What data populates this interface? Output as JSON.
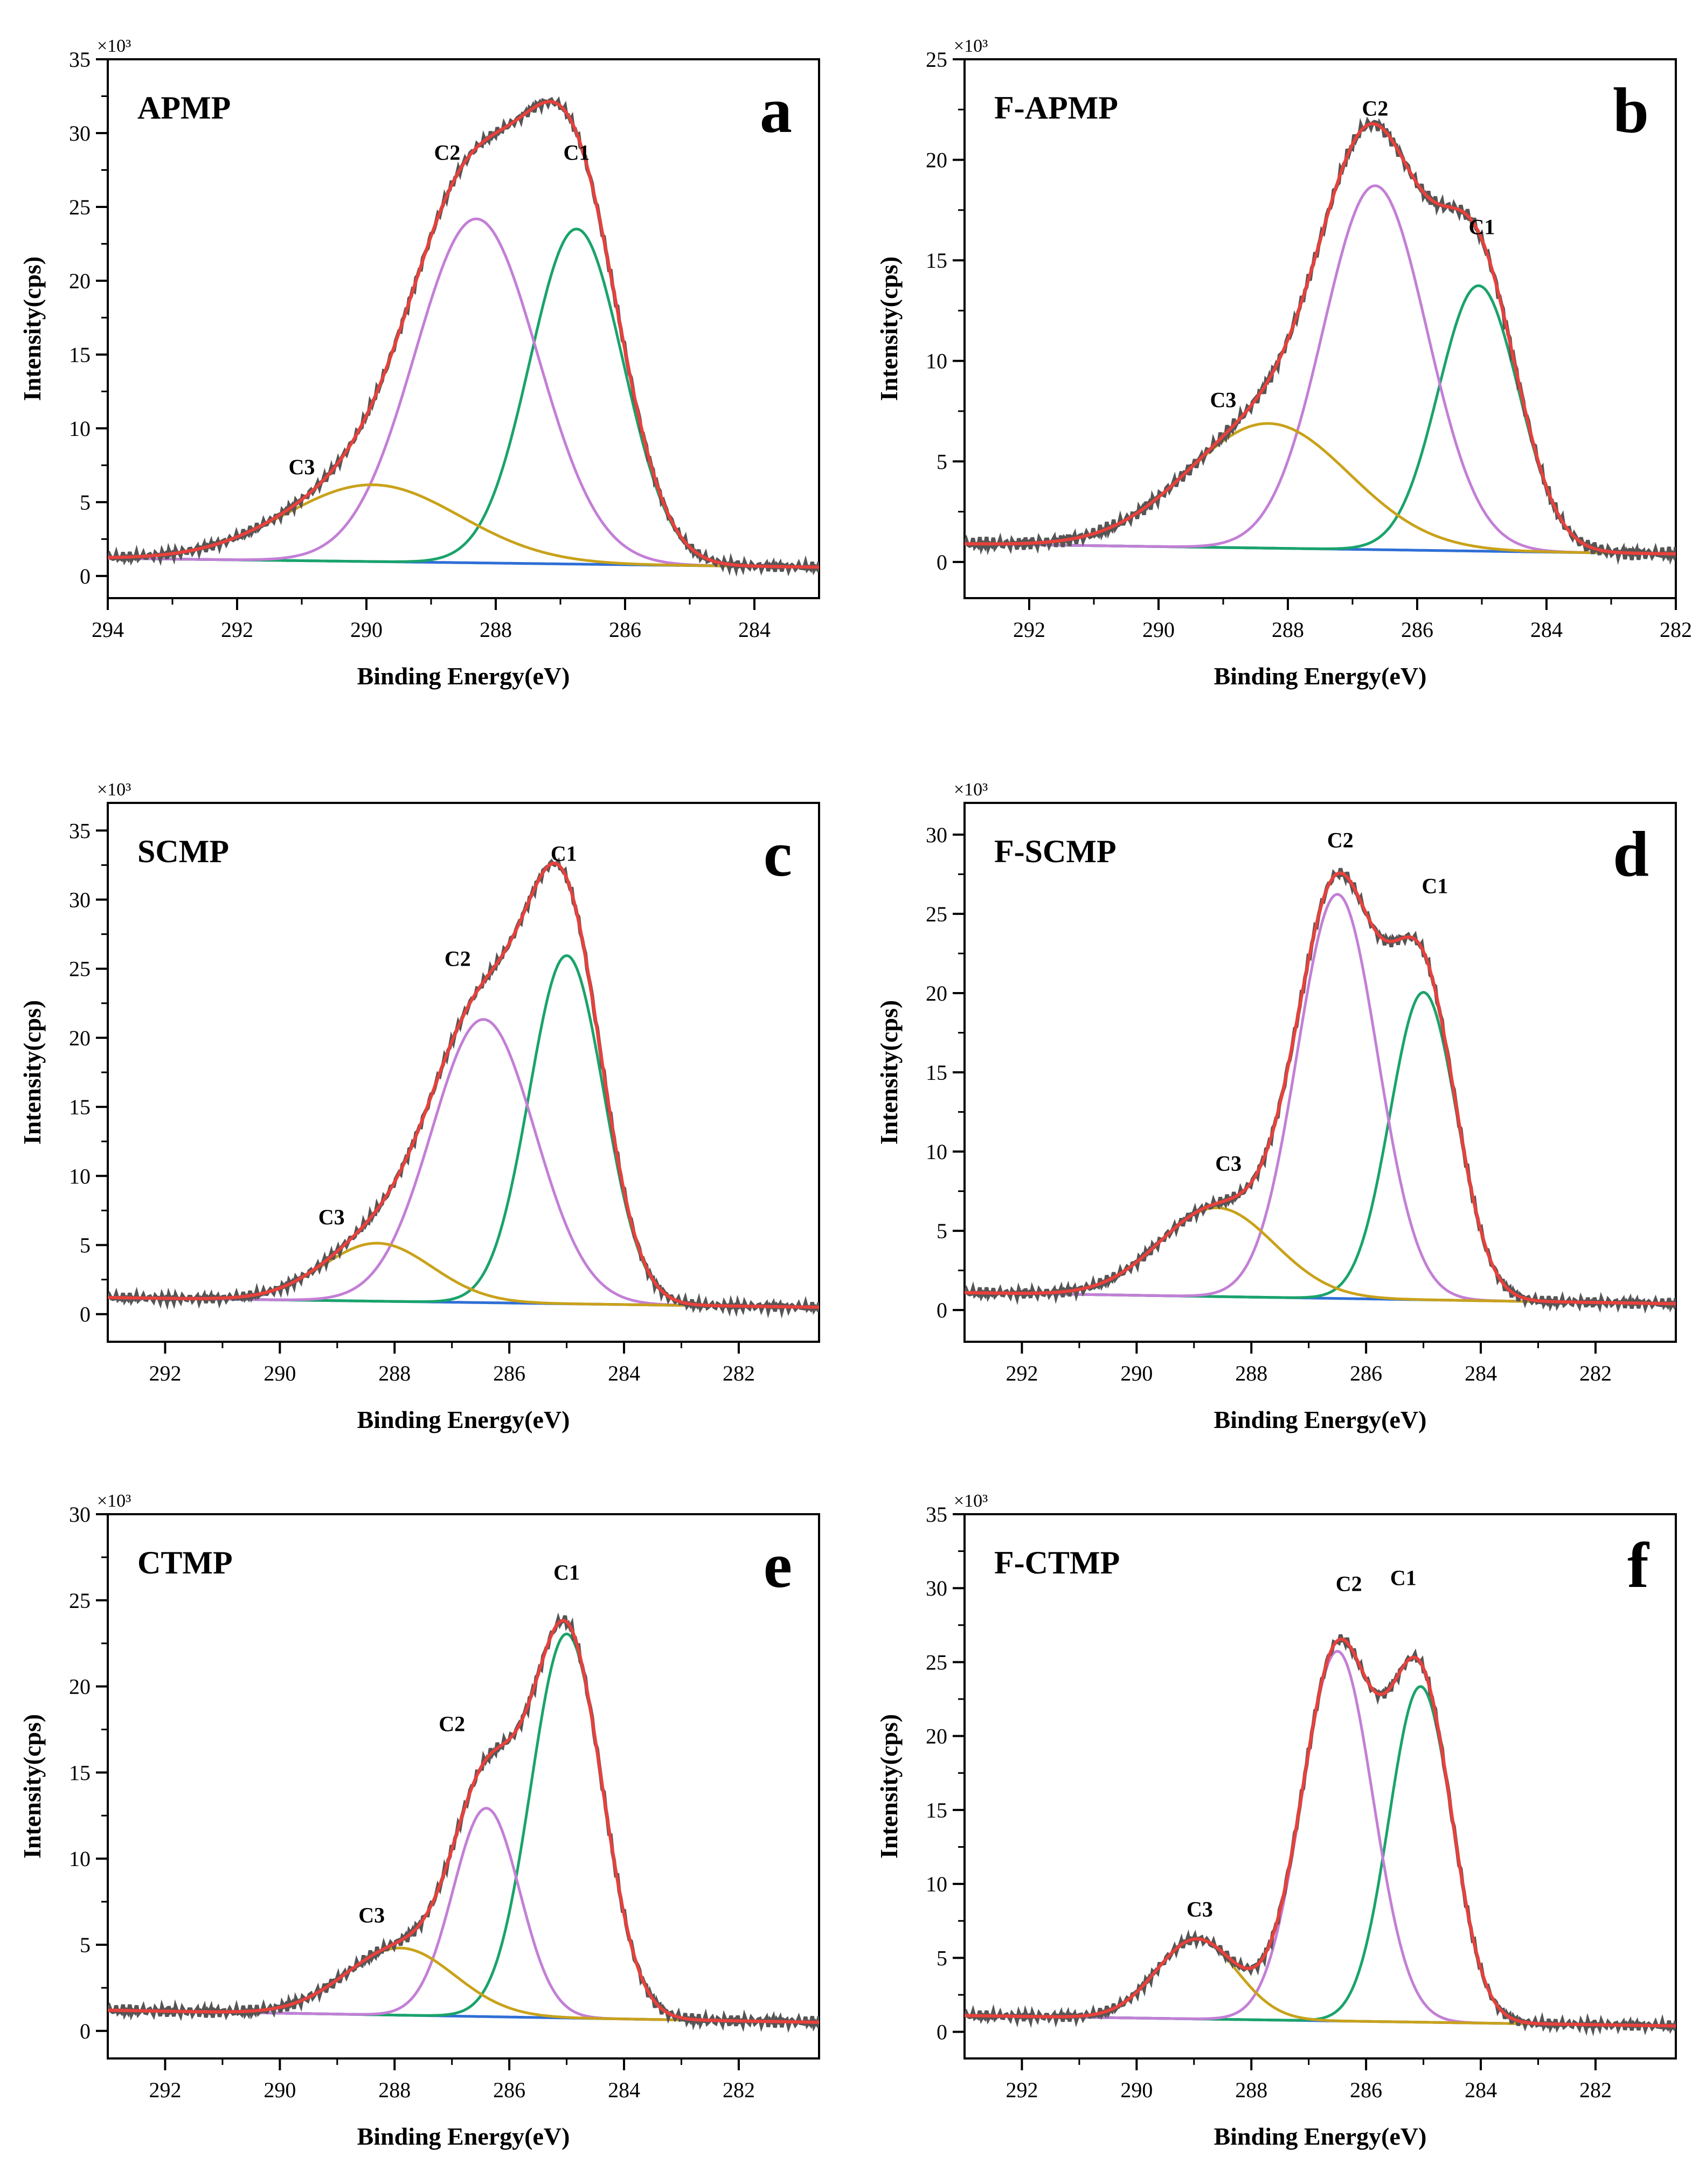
{
  "figure": {
    "x_label": "Binding Energy(eV)",
    "y_label": "Intensity(cps)",
    "y_multiplier": "×10³"
  },
  "colors": {
    "raw": "#555555",
    "envelope": "#e8413c",
    "C1": "#1aa36b",
    "C2": "#c37fd6",
    "C3": "#c9a21a",
    "baseline": "#2f6fd6",
    "axis": "#000000"
  },
  "chart_data": [
    {
      "type": "line",
      "title": "APMP",
      "panel_letter": "a",
      "xlim": [
        294,
        283
      ],
      "ylim": [
        -1.5,
        35
      ],
      "x_ticks": [
        294,
        292,
        290,
        288,
        286,
        284
      ],
      "y_ticks": [
        0,
        5,
        10,
        15,
        20,
        25,
        30,
        35
      ],
      "xlabel": "Binding Energy(eV)",
      "ylabel": "Intensity(cps)",
      "y_multiplier": "×10³",
      "baseline": {
        "start": 1.2,
        "end": 0.6
      },
      "series": [
        {
          "name": "C1",
          "center": 286.75,
          "amplitude": 22.7,
          "sigma": 0.72
        },
        {
          "name": "C2",
          "center": 288.3,
          "amplitude": 23.3,
          "sigma": 0.95
        },
        {
          "name": "C3",
          "center": 289.9,
          "amplitude": 5.2,
          "sigma": 1.35
        }
      ],
      "annotations": [
        {
          "text": "C1",
          "x": 286.75,
          "y": 28.2
        },
        {
          "text": "C2",
          "x": 288.75,
          "y": 28.2
        },
        {
          "text": "C3",
          "x": 291.0,
          "y": 6.9
        }
      ]
    },
    {
      "type": "line",
      "title": "F-APMP",
      "panel_letter": "b",
      "xlim": [
        293,
        282
      ],
      "ylim": [
        -1.8,
        25
      ],
      "x_ticks": [
        292,
        290,
        288,
        286,
        284,
        282
      ],
      "y_ticks": [
        0,
        5,
        10,
        15,
        20,
        25
      ],
      "xlabel": "Binding Energy(eV)",
      "ylabel": "Intensity(cps)",
      "y_multiplier": "×10³",
      "baseline": {
        "start": 0.9,
        "end": 0.4
      },
      "series": [
        {
          "name": "C1",
          "center": 285.05,
          "amplitude": 13.2,
          "sigma": 0.62
        },
        {
          "name": "C2",
          "center": 286.65,
          "amplitude": 18.1,
          "sigma": 0.8
        },
        {
          "name": "C3",
          "center": 288.3,
          "amplitude": 6.2,
          "sigma": 1.25
        }
      ],
      "annotations": [
        {
          "text": "C1",
          "x": 285.0,
          "y": 16.3
        },
        {
          "text": "C2",
          "x": 286.65,
          "y": 22.2
        },
        {
          "text": "C3",
          "x": 289.0,
          "y": 7.7
        }
      ]
    },
    {
      "type": "line",
      "title": "SCMP",
      "panel_letter": "c",
      "xlim": [
        293,
        280.6
      ],
      "ylim": [
        -2,
        37
      ],
      "x_ticks": [
        292,
        290,
        288,
        286,
        284,
        282
      ],
      "y_ticks": [
        0,
        5,
        10,
        15,
        20,
        25,
        30,
        35
      ],
      "xlabel": "Binding Energy(eV)",
      "ylabel": "Intensity(cps)",
      "y_multiplier": "×10³",
      "baseline": {
        "start": 1.2,
        "end": 0.5
      },
      "series": [
        {
          "name": "C1",
          "center": 285.0,
          "amplitude": 25.2,
          "sigma": 0.65
        },
        {
          "name": "C2",
          "center": 286.45,
          "amplitude": 20.5,
          "sigma": 0.9
        },
        {
          "name": "C3",
          "center": 288.3,
          "amplitude": 4.2,
          "sigma": 0.95
        }
      ],
      "annotations": [
        {
          "text": "C1",
          "x": 285.05,
          "y": 32.8
        },
        {
          "text": "C2",
          "x": 286.9,
          "y": 25.2
        },
        {
          "text": "C3",
          "x": 289.1,
          "y": 6.5
        }
      ]
    },
    {
      "type": "line",
      "title": "F-SCMP",
      "panel_letter": "d",
      "xlim": [
        293,
        280.6
      ],
      "ylim": [
        -2,
        32
      ],
      "x_ticks": [
        292,
        290,
        288,
        286,
        284,
        282
      ],
      "y_ticks": [
        0,
        5,
        10,
        15,
        20,
        25,
        30
      ],
      "xlabel": "Binding Energy(eV)",
      "ylabel": "Intensity(cps)",
      "y_multiplier": "×10³",
      "baseline": {
        "start": 1.1,
        "end": 0.4
      },
      "series": [
        {
          "name": "C1",
          "center": 285.0,
          "amplitude": 19.4,
          "sigma": 0.58
        },
        {
          "name": "C2",
          "center": 286.5,
          "amplitude": 25.5,
          "sigma": 0.7
        },
        {
          "name": "C3",
          "center": 288.6,
          "amplitude": 5.6,
          "sigma": 1.0
        }
      ],
      "annotations": [
        {
          "text": "C1",
          "x": 284.8,
          "y": 26.3
        },
        {
          "text": "C2",
          "x": 286.45,
          "y": 29.2
        },
        {
          "text": "C3",
          "x": 288.4,
          "y": 8.8
        }
      ]
    },
    {
      "type": "line",
      "title": "CTMP",
      "panel_letter": "e",
      "xlim": [
        293,
        280.6
      ],
      "ylim": [
        -1.6,
        30
      ],
      "x_ticks": [
        292,
        290,
        288,
        286,
        284,
        282
      ],
      "y_ticks": [
        0,
        5,
        10,
        15,
        20,
        25,
        30
      ],
      "xlabel": "Binding Energy(eV)",
      "ylabel": "Intensity(cps)",
      "y_multiplier": "×10³",
      "baseline": {
        "start": 1.2,
        "end": 0.5
      },
      "series": [
        {
          "name": "C1",
          "center": 285.0,
          "amplitude": 22.3,
          "sigma": 0.62
        },
        {
          "name": "C2",
          "center": 286.4,
          "amplitude": 12.1,
          "sigma": 0.58
        },
        {
          "name": "C3",
          "center": 287.9,
          "amplitude": 3.9,
          "sigma": 0.95
        }
      ],
      "annotations": [
        {
          "text": "C1",
          "x": 285.0,
          "y": 26.2
        },
        {
          "text": "C2",
          "x": 287.0,
          "y": 17.4
        },
        {
          "text": "C3",
          "x": 288.4,
          "y": 6.3
        }
      ]
    },
    {
      "type": "line",
      "title": "F-CTMP",
      "panel_letter": "f",
      "xlim": [
        293,
        280.6
      ],
      "ylim": [
        -1.8,
        35
      ],
      "x_ticks": [
        292,
        290,
        288,
        286,
        284,
        282
      ],
      "y_ticks": [
        0,
        5,
        10,
        15,
        20,
        25,
        30,
        35
      ],
      "xlabel": "Binding Energy(eV)",
      "ylabel": "Intensity(cps)",
      "y_multiplier": "×10³",
      "baseline": {
        "start": 1.1,
        "end": 0.4
      },
      "series": [
        {
          "name": "C1",
          "center": 285.05,
          "amplitude": 22.7,
          "sigma": 0.55
        },
        {
          "name": "C2",
          "center": 286.5,
          "amplitude": 25.0,
          "sigma": 0.62
        },
        {
          "name": "C3",
          "center": 288.95,
          "amplitude": 5.4,
          "sigma": 0.7
        }
      ],
      "annotations": [
        {
          "text": "C1",
          "x": 285.35,
          "y": 30.2
        },
        {
          "text": "C2",
          "x": 286.3,
          "y": 29.8
        },
        {
          "text": "C3",
          "x": 288.9,
          "y": 7.8
        }
      ]
    }
  ]
}
